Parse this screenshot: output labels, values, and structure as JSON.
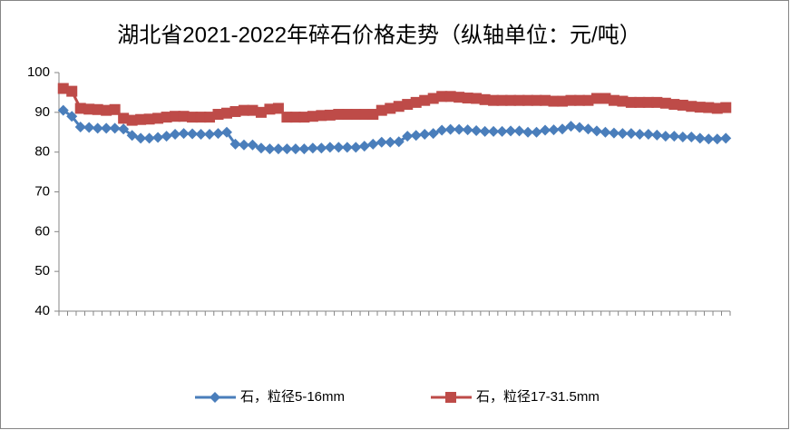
{
  "chart_data": {
    "type": "line",
    "title": "湖北省2021-2022年碎石价格走势（纵轴单位：元/吨）",
    "categories": [
      null,
      null,
      null,
      null,
      null,
      null,
      null,
      null,
      null,
      null,
      null,
      null,
      null,
      null,
      null,
      null,
      null,
      null,
      null,
      null,
      null,
      null,
      null,
      null,
      null,
      null,
      null,
      null,
      null,
      null,
      null,
      null,
      null,
      null,
      null,
      null,
      null,
      null,
      null,
      null,
      null,
      null,
      null,
      null,
      null,
      null,
      null,
      null,
      null,
      null,
      null,
      null,
      null,
      null,
      null,
      null,
      null,
      null,
      null,
      null,
      null,
      null,
      null,
      null,
      null,
      null,
      null,
      null,
      null,
      null,
      null,
      null,
      null,
      null,
      null,
      null,
      null,
      null
    ],
    "series": [
      {
        "name": "石，粒径5-16mm",
        "color": "#4a7ebb",
        "marker": "diamond",
        "values": [
          90.5,
          89,
          86.3,
          86.2,
          86,
          86,
          86,
          85.8,
          84.2,
          83.5,
          83.5,
          83.7,
          84,
          84.5,
          84.7,
          84.6,
          84.5,
          84.5,
          84.7,
          85,
          82,
          81.8,
          81.8,
          81,
          80.8,
          80.8,
          80.8,
          80.8,
          80.8,
          81,
          81,
          81.2,
          81.2,
          81.2,
          81.2,
          81.5,
          82,
          82.5,
          82.5,
          82.6,
          84,
          84.2,
          84.5,
          84.7,
          85.5,
          85.7,
          85.7,
          85.6,
          85.4,
          85.2,
          85.2,
          85.2,
          85.3,
          85.3,
          85,
          85,
          85.5,
          85.6,
          85.8,
          86.5,
          86.2,
          85.8,
          85.3,
          85,
          84.8,
          84.7,
          84.7,
          84.5,
          84.5,
          84.3,
          84,
          84,
          83.8,
          83.8,
          83.5,
          83.3,
          83.3,
          83.5
        ]
      },
      {
        "name": "石，粒径17-31.5mm",
        "color": "#be4b48",
        "marker": "square",
        "values": [
          96,
          95.3,
          91,
          90.8,
          90.7,
          90.5,
          90.7,
          88.5,
          88,
          88.2,
          88.3,
          88.5,
          88.8,
          89,
          89,
          88.8,
          88.8,
          88.8,
          89.5,
          89.8,
          90.2,
          90.5,
          90.5,
          90,
          90.8,
          91,
          88.8,
          88.8,
          88.8,
          89,
          89.2,
          89.3,
          89.5,
          89.5,
          89.5,
          89.5,
          89.5,
          90.5,
          91,
          91.5,
          92,
          92.5,
          93,
          93.5,
          94,
          94,
          93.8,
          93.6,
          93.5,
          93.2,
          93,
          93,
          93,
          93,
          93,
          93,
          93,
          92.8,
          92.8,
          93,
          93,
          93,
          93.5,
          93.5,
          93,
          92.8,
          92.5,
          92.5,
          92.5,
          92.5,
          92.3,
          92,
          91.8,
          91.5,
          91.3,
          91.2,
          91,
          91.2
        ]
      }
    ],
    "ylim": [
      40,
      100
    ],
    "yticks": [
      40,
      50,
      60,
      70,
      80,
      90,
      100
    ],
    "grid": false,
    "legend": "bottom"
  }
}
